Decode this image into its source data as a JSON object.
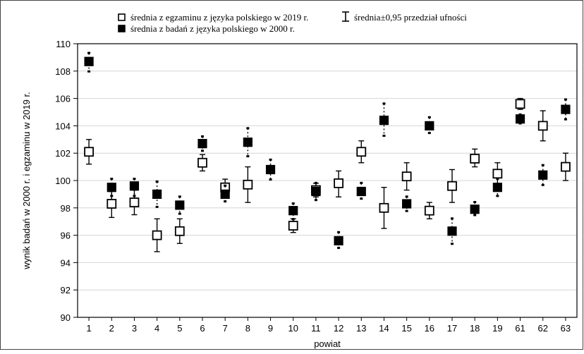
{
  "chart_data": {
    "type": "scatter",
    "title": "",
    "xlabel": "powiat",
    "ylabel": "wynik badań w 2000 r. i egzaminu w 2019 r.",
    "ylim": [
      90,
      110
    ],
    "yticks": [
      90,
      92,
      94,
      96,
      98,
      100,
      102,
      104,
      106,
      108,
      110
    ],
    "grid": "horizontal",
    "legend_position": "top",
    "categories": [
      "1",
      "2",
      "3",
      "4",
      "5",
      "6",
      "7",
      "8",
      "9",
      "10",
      "11",
      "12",
      "13",
      "14",
      "15",
      "16",
      "17",
      "18",
      "19",
      "61",
      "62",
      "63"
    ],
    "legend": {
      "exam_2019": "średnia z egzaminu z języka polskiego w 2019 r.",
      "error_bar": "średnia±0,95 przedział ufności",
      "study_2000": "średnia z badań z języka polskiego  w 2000 r."
    },
    "series": [
      {
        "name": "średnia z egzaminu z języka polskiego w 2019 r.",
        "marker": "open-square",
        "values": [
          102.1,
          98.3,
          98.4,
          96.0,
          96.3,
          101.3,
          99.5,
          99.7,
          96.7,
          99.3,
          99.8,
          102.1,
          98.0,
          100.3,
          97.8,
          99.6,
          101.6,
          100.5,
          105.6,
          104.0,
          101.0
        ],
        "ci_low": [
          101.2,
          97.3,
          97.5,
          94.8,
          95.4,
          100.7,
          98.9,
          98.4,
          96.2,
          98.8,
          98.8,
          101.3,
          96.5,
          99.3,
          97.2,
          98.4,
          101.0,
          99.7,
          105.2,
          102.9,
          100.0
        ],
        "ci_high": [
          103.0,
          99.2,
          99.3,
          97.2,
          97.2,
          101.9,
          100.1,
          101.0,
          97.2,
          99.8,
          100.7,
          102.9,
          99.5,
          101.3,
          98.4,
          100.8,
          102.3,
          101.3,
          106.0,
          105.1,
          102.0
        ],
        "categories": [
          "1",
          "2",
          "3",
          "4",
          "5",
          "6",
          "7",
          "8",
          "10",
          "11",
          "12",
          "13",
          "14",
          "15",
          "16",
          "17",
          "18",
          "19",
          "61",
          "62",
          "63"
        ]
      },
      {
        "name": "średnia z badań z języka polskiego  w 2000 r.",
        "marker": "filled-square",
        "values": [
          108.7,
          99.5,
          99.6,
          99.0,
          98.2,
          102.7,
          99.0,
          102.8,
          100.8,
          97.8,
          99.2,
          95.6,
          99.2,
          104.4,
          98.3,
          104.0,
          96.3,
          97.9,
          99.5,
          104.5,
          100.4,
          105.2
        ],
        "ci_low": [
          108.0,
          98.9,
          98.9,
          98.1,
          97.6,
          102.2,
          98.5,
          101.8,
          100.1,
          97.2,
          98.6,
          95.1,
          98.7,
          103.3,
          97.8,
          103.5,
          95.4,
          97.5,
          98.9,
          104.2,
          99.7,
          104.5
        ],
        "ci_high": [
          109.3,
          100.1,
          100.1,
          99.9,
          98.8,
          103.2,
          99.6,
          103.8,
          101.5,
          98.3,
          99.8,
          96.2,
          99.8,
          105.6,
          98.8,
          104.6,
          97.2,
          98.4,
          100.1,
          104.8,
          101.1,
          105.9
        ],
        "categories": [
          "1",
          "2",
          "3",
          "4",
          "5",
          "6",
          "7",
          "8",
          "9",
          "10",
          "11",
          "12",
          "13",
          "14",
          "15",
          "16",
          "17",
          "18",
          "19",
          "61",
          "62",
          "63"
        ]
      }
    ]
  }
}
